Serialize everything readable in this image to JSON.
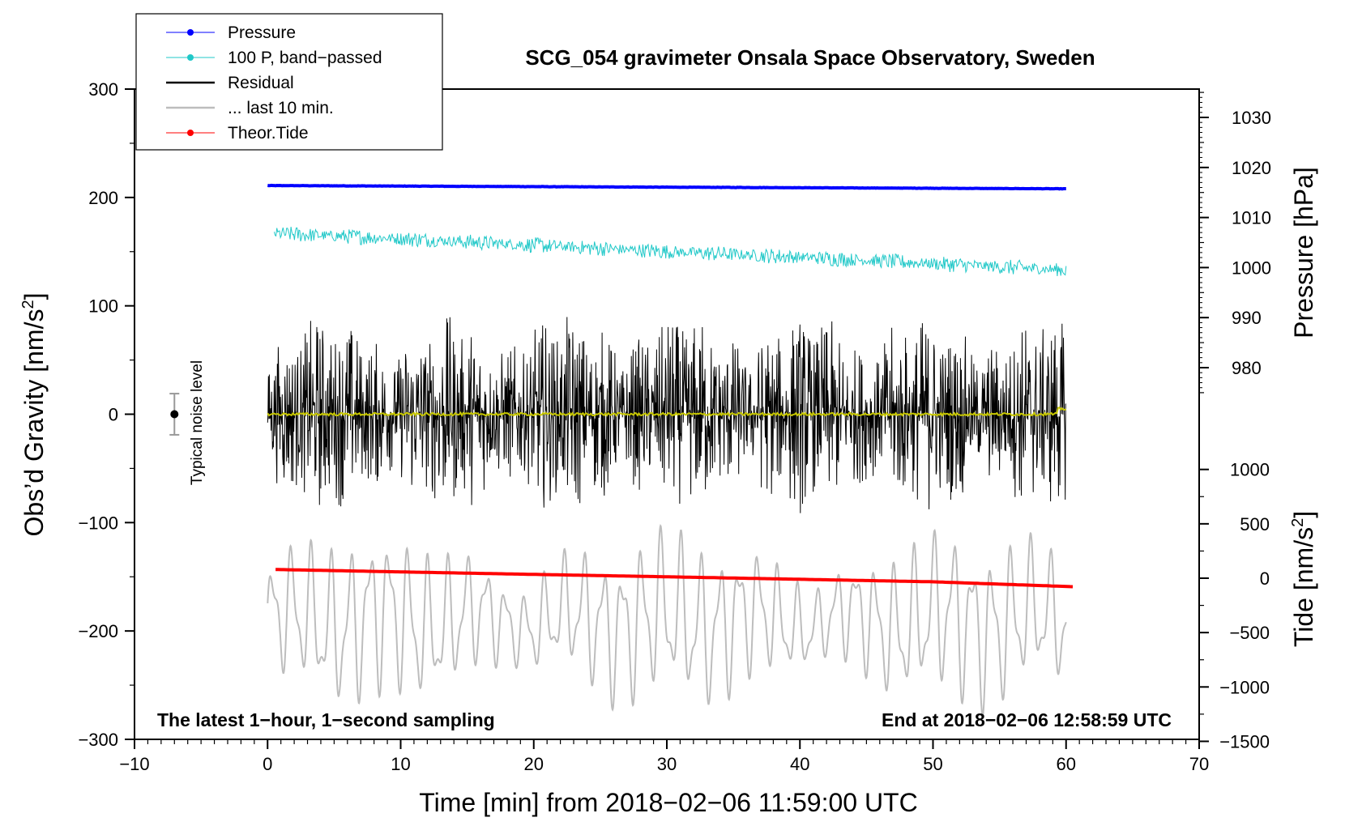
{
  "chart_data": {
    "type": "line",
    "title": "SCG_054 gravimeter Onsala Space Observatory, Sweden",
    "xlabel": "Time [min] from 2018−02−06 11:59:00 UTC",
    "ylabel": "Obs’d Gravity [nm/s",
    "ylabel_sup": "2",
    "ylabel_end": "]",
    "y2label": "Pressure [hPa]",
    "y3label": "Tide [nm/s",
    "y3label_sup": "2",
    "y3label_end": "]",
    "xlim": [
      -10,
      70
    ],
    "ylim": [
      -300,
      300
    ],
    "x_ticks": [
      "−10",
      "0",
      "10",
      "20",
      "30",
      "40",
      "50",
      "60",
      "70"
    ],
    "y_ticks": [
      "300",
      "200",
      "100",
      "0",
      "−100",
      "−200",
      "−300"
    ],
    "pressure_ticks": [
      "1030",
      "1020",
      "1010",
      "1000",
      "990",
      "980"
    ],
    "tide_ticks": [
      "1000",
      "500",
      "0",
      "−500",
      "−1000",
      "−1500"
    ],
    "note_left": "The latest 1−hour, 1−second sampling",
    "note_right": "End at 2018−02−06 12:58:59 UTC",
    "noise_label": "Typical noise level",
    "noise_level": {
      "x": -7,
      "y": 0,
      "err": 19
    },
    "legend": [
      {
        "label": "Pressure",
        "color": "#0000ff",
        "marker": true
      },
      {
        "label": "100 P, band−passed",
        "color": "#20c8c8",
        "marker": true
      },
      {
        "label": "Residual",
        "color": "#000000",
        "marker": false
      },
      {
        "label": "... last 10 min.",
        "color": "#bdbdbd",
        "marker": false
      },
      {
        "label": "Theor.Tide",
        "color": "#ff0000",
        "marker": true
      }
    ],
    "series": [
      {
        "name": "Pressure",
        "color": "#0000ff",
        "axis": "gravity",
        "x": [
          0,
          10,
          20,
          30,
          40,
          50,
          60
        ],
        "values": [
          211,
          210.5,
          210,
          209.5,
          209,
          208.5,
          208
        ]
      },
      {
        "name": "100 P, band−passed",
        "color": "#20c8c8",
        "axis": "gravity",
        "x": [
          0,
          10,
          20,
          30,
          40,
          50,
          60
        ],
        "values": [
          167,
          162,
          156,
          150,
          145,
          139,
          133
        ],
        "noise_amplitude": 4
      },
      {
        "name": "Residual",
        "color": "#000000",
        "axis": "gravity",
        "x": [
          0,
          10,
          20,
          30,
          40,
          50,
          60
        ],
        "values": [
          0,
          0,
          0,
          0,
          0,
          0,
          0
        ],
        "noise_amplitude": 45
      },
      {
        "name": "Residual (smoothed)",
        "color": "#c8c800",
        "axis": "gravity",
        "x": [
          0,
          60
        ],
        "values": [
          0,
          0
        ]
      },
      {
        "name": "... last 10 min.",
        "color": "#bdbdbd",
        "axis": "gravity",
        "x": [
          0,
          60
        ],
        "values": [
          -190,
          -190
        ],
        "amplitude": 70
      },
      {
        "name": "Theor.Tide",
        "color": "#ff0000",
        "axis": "tide",
        "x": [
          0.6,
          10,
          20,
          30,
          40,
          50,
          60.5
        ],
        "values": [
          80,
          58,
          35,
          13,
          -10,
          -33,
          -78
        ]
      }
    ]
  }
}
